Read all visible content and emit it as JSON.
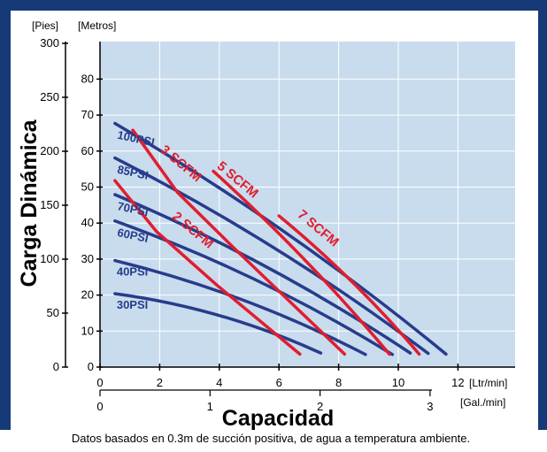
{
  "chart_data": {
    "type": "line",
    "title": "",
    "xlabel": "Capacidad",
    "ylabel": "Carga Dinámica",
    "x_unit_primary": "[Ltr/min]",
    "x_unit_secondary": "[Gal./min]",
    "y_unit_primary": "[Pies]",
    "y_unit_secondary": "[Metros]",
    "xlim": [
      0,
      13
    ],
    "ylim_meters": [
      0,
      90
    ],
    "x_ticks_ltr": [
      "0",
      "2",
      "4",
      "6",
      "8",
      "10",
      "12"
    ],
    "x_ticks_gal": [
      "0",
      "1",
      "2",
      "3"
    ],
    "y_ticks_pies": [
      "0",
      "50",
      "100",
      "150",
      "200",
      "250",
      "300"
    ],
    "y_ticks_metros": [
      "0",
      "10",
      "20",
      "30",
      "40",
      "50",
      "60",
      "70",
      "80"
    ],
    "footnote": "Datos basados en 0.3m de succión positiva, de agua a temperatura ambiente.",
    "colors": {
      "outer_background": "#163a78",
      "plot_background": "#c8dcee",
      "grid": "#ffffff",
      "pressure_lines": "#283c8c",
      "air_lines": "#e01e2d"
    },
    "pressure_series": [
      {
        "name": "100PSI",
        "points": [
          [
            0.5,
            67.7
          ],
          [
            11.6,
            3.6
          ]
        ]
      },
      {
        "name": "85PSI",
        "points": [
          [
            0.5,
            58.1
          ],
          [
            11.0,
            3.8
          ]
        ]
      },
      {
        "name": "70PSI",
        "points": [
          [
            0.5,
            47.9
          ],
          [
            10.4,
            3.9
          ]
        ]
      },
      {
        "name": "60PSI",
        "points": [
          [
            0.5,
            40.6
          ],
          [
            9.8,
            3.5
          ]
        ]
      },
      {
        "name": "40PSI",
        "points": [
          [
            0.5,
            29.6
          ],
          [
            8.9,
            3.5
          ]
        ]
      },
      {
        "name": "30PSI",
        "points": [
          [
            0.5,
            20.4
          ],
          [
            7.4,
            3.9
          ]
        ]
      }
    ],
    "air_series": [
      {
        "name": "2 SCFM",
        "points": [
          [
            0.5,
            51.8
          ],
          [
            1.9,
            37.6
          ],
          [
            3.9,
            22.9
          ],
          [
            6.7,
            3.6
          ]
        ]
      },
      {
        "name": "3 SCFM",
        "points": [
          [
            1.1,
            65.8
          ],
          [
            2.6,
            48.5
          ],
          [
            4.5,
            33.0
          ],
          [
            8.2,
            3.6
          ]
        ]
      },
      {
        "name": "5 SCFM",
        "points": [
          [
            3.8,
            54.4
          ],
          [
            9.7,
            3.6
          ]
        ]
      },
      {
        "name": "7 SCFM",
        "points": [
          [
            6.0,
            42.0
          ],
          [
            10.7,
            3.6
          ]
        ]
      }
    ]
  }
}
